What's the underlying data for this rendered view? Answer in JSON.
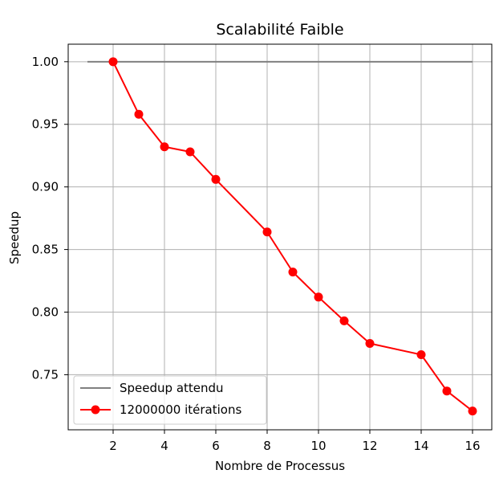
{
  "chart_data": {
    "type": "line",
    "title": "Scalabilité Faible",
    "xlabel": "Nombre de Processus",
    "ylabel": "Speedup",
    "xlim": [
      0.25,
      16.75
    ],
    "ylim": [
      0.706,
      1.014
    ],
    "xticks": [
      2,
      4,
      6,
      8,
      10,
      12,
      14,
      16
    ],
    "yticks": [
      0.75,
      0.8,
      0.85,
      0.9,
      0.95,
      1.0
    ],
    "ytick_labels": [
      "0.75",
      "0.80",
      "0.85",
      "0.90",
      "0.95",
      "1.00"
    ],
    "grid": true,
    "legend_position": "lower-left",
    "series": [
      {
        "name": "Speedup attendu",
        "color": "#808080",
        "marker": "none",
        "x": [
          1,
          16
        ],
        "y": [
          1.0,
          1.0
        ]
      },
      {
        "name": "12000000 itérations",
        "color": "#ff0000",
        "marker": "circle",
        "x": [
          2,
          3,
          4,
          5,
          6,
          8,
          9,
          10,
          11,
          12,
          14,
          15,
          16
        ],
        "y": [
          1.0,
          0.958,
          0.932,
          0.928,
          0.906,
          0.864,
          0.832,
          0.812,
          0.793,
          0.775,
          0.766,
          0.737,
          0.721
        ]
      }
    ]
  }
}
